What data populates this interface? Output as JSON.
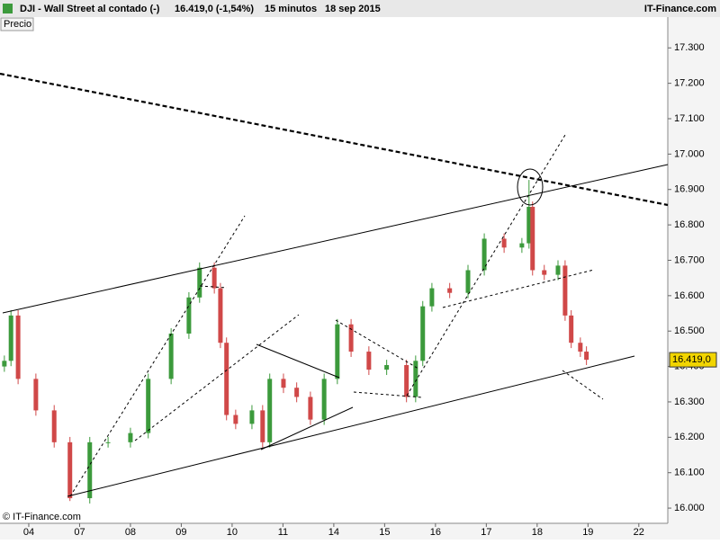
{
  "header": {
    "symbol": "DJI - Wall Street al contado (-)",
    "price": "16.419,0 (-1,54%)",
    "interval": "15 minutos",
    "date": "18 sep 2015",
    "brand": "IT-Finance.com"
  },
  "chart_data": {
    "type": "candlestick",
    "panel_label": "Precio",
    "footer": "© IT-Finance.com",
    "last_price_label": "16.419,0",
    "last_price": 16419,
    "up_color": "#3c9a3c",
    "down_color": "#d04848",
    "x": [
      -0.48,
      -0.35,
      -0.21,
      0.14,
      0.5,
      0.81,
      1.2,
      1.56,
      2.0,
      2.35,
      2.8,
      3.15,
      3.36,
      3.65,
      3.77,
      3.89,
      4.07,
      4.39,
      4.6,
      4.74,
      5.01,
      5.27,
      5.54,
      5.81,
      6.07,
      6.34,
      6.69,
      7.04,
      7.43,
      7.61,
      7.75,
      7.93,
      8.28,
      8.64,
      8.96,
      9.35,
      9.7,
      9.84,
      9.91,
      10.14,
      10.41,
      10.55,
      10.67,
      10.85,
      10.97
    ],
    "open": [
      16400,
      16416,
      16544,
      16365,
      16276,
      16186,
      16028,
      16186,
      16186,
      16212,
      16365,
      16493,
      16595,
      16679,
      16621,
      16467,
      16263,
      16238,
      16276,
      16186,
      16365,
      16340,
      16314,
      16250,
      16365,
      16519,
      16442,
      16391,
      16404,
      16314,
      16416,
      16570,
      16621,
      16608,
      16672,
      16761,
      16736,
      16748,
      16851,
      16672,
      16659,
      16685,
      16544,
      16467,
      16442
    ],
    "high": [
      16431,
      16559,
      16559,
      16380,
      16291,
      16201,
      16201,
      16201,
      16227,
      16380,
      16508,
      16610,
      16694,
      16694,
      16636,
      16482,
      16278,
      16291,
      16291,
      16380,
      16380,
      16355,
      16329,
      16380,
      16534,
      16534,
      16457,
      16419,
      16419,
      16431,
      16585,
      16636,
      16636,
      16687,
      16776,
      16776,
      16763,
      16927,
      16866,
      16687,
      16700,
      16700,
      16559,
      16482,
      16457
    ],
    "low": [
      16385,
      16401,
      16350,
      16261,
      16171,
      16020,
      16013,
      16171,
      16171,
      16197,
      16350,
      16478,
      16580,
      16606,
      16452,
      16248,
      16223,
      16223,
      16171,
      16171,
      16325,
      16299,
      16235,
      16235,
      16350,
      16427,
      16376,
      16376,
      16299,
      16299,
      16401,
      16555,
      16593,
      16593,
      16657,
      16721,
      16721,
      16733,
      16657,
      16644,
      16644,
      16529,
      16452,
      16427,
      16404
    ],
    "close": [
      16416,
      16544,
      16365,
      16276,
      16186,
      16028,
      16186,
      16186,
      16212,
      16365,
      16493,
      16595,
      16679,
      16621,
      16467,
      16263,
      16238,
      16276,
      16186,
      16365,
      16340,
      16314,
      16250,
      16365,
      16519,
      16442,
      16391,
      16404,
      16314,
      16416,
      16570,
      16621,
      16608,
      16672,
      16761,
      16736,
      16748,
      16851,
      16672,
      16659,
      16685,
      16544,
      16467,
      16442,
      16419
    ],
    "xlim": [
      -0.566,
      12.57
    ],
    "xticks": [
      {
        "value": 0,
        "label": "04"
      },
      {
        "value": 1,
        "label": "07"
      },
      {
        "value": 2,
        "label": "08"
      },
      {
        "value": 3,
        "label": "09"
      },
      {
        "value": 4,
        "label": "10"
      },
      {
        "value": 5,
        "label": "11"
      },
      {
        "value": 6,
        "label": "14"
      },
      {
        "value": 7,
        "label": "15"
      },
      {
        "value": 8,
        "label": "16"
      },
      {
        "value": 9,
        "label": "17"
      },
      {
        "value": 10,
        "label": "18"
      },
      {
        "value": 11,
        "label": "19"
      },
      {
        "value": 12,
        "label": "22"
      }
    ],
    "ylim": [
      15957,
      17387
    ],
    "yticks": [
      {
        "value": 16000,
        "label": "16.000"
      },
      {
        "value": 16100,
        "label": "16.100"
      },
      {
        "value": 16200,
        "label": "16.200"
      },
      {
        "value": 16300,
        "label": "16.300"
      },
      {
        "value": 16400,
        "label": "16.400"
      },
      {
        "value": 16500,
        "label": "16.500"
      },
      {
        "value": 16600,
        "label": "16.600"
      },
      {
        "value": 16700,
        "label": "16.700"
      },
      {
        "value": 16800,
        "label": "16.800"
      },
      {
        "value": 16900,
        "label": "16.900"
      },
      {
        "value": 17000,
        "label": "17.000"
      },
      {
        "value": 17100,
        "label": "17.100"
      },
      {
        "value": 17200,
        "label": "17.200"
      },
      {
        "value": 17300,
        "label": "17.300"
      }
    ]
  }
}
